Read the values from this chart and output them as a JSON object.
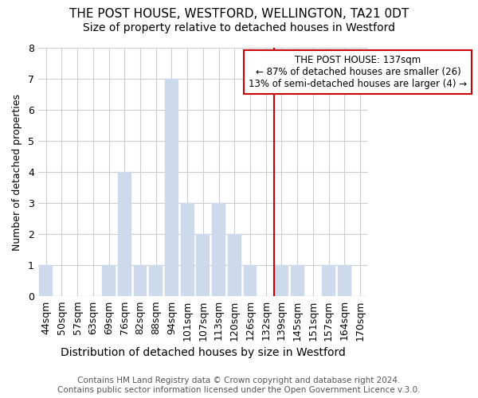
{
  "title": "THE POST HOUSE, WESTFORD, WELLINGTON, TA21 0DT",
  "subtitle": "Size of property relative to detached houses in Westford",
  "xlabel": "Distribution of detached houses by size in Westford",
  "ylabel": "Number of detached properties",
  "categories": [
    "44sqm",
    "50sqm",
    "57sqm",
    "63sqm",
    "69sqm",
    "76sqm",
    "82sqm",
    "88sqm",
    "94sqm",
    "101sqm",
    "107sqm",
    "113sqm",
    "120sqm",
    "126sqm",
    "132sqm",
    "139sqm",
    "145sqm",
    "151sqm",
    "157sqm",
    "164sqm",
    "170sqm"
  ],
  "values": [
    1,
    0,
    0,
    0,
    1,
    4,
    1,
    1,
    7,
    3,
    2,
    3,
    2,
    1,
    0,
    1,
    1,
    0,
    1,
    1,
    0
  ],
  "bar_color": "#ccdaeb",
  "bar_edge_color": "#ccdaeb",
  "background_color": "#ffffff",
  "plot_background": "#ffffff",
  "grid_color": "#cccccc",
  "vline_x_index": 14.5,
  "vline_color": "#cc0000",
  "annotation_text": "THE POST HOUSE: 137sqm\n← 87% of detached houses are smaller (26)\n13% of semi-detached houses are larger (4) →",
  "annotation_box_color": "#cc0000",
  "ylim": [
    0,
    8
  ],
  "yticks": [
    0,
    1,
    2,
    3,
    4,
    5,
    6,
    7,
    8
  ],
  "footer_line1": "Contains HM Land Registry data © Crown copyright and database right 2024.",
  "footer_line2": "Contains public sector information licensed under the Open Government Licence v.3.0.",
  "title_fontsize": 11,
  "subtitle_fontsize": 10,
  "xlabel_fontsize": 10,
  "ylabel_fontsize": 9,
  "tick_fontsize": 9,
  "footer_fontsize": 7.5
}
